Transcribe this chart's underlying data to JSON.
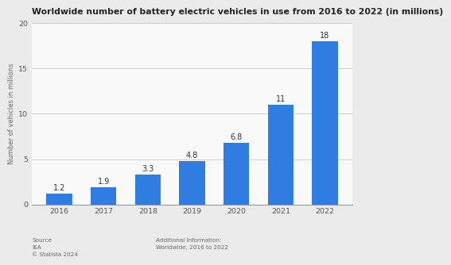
{
  "title": "Worldwide number of battery electric vehicles in use from 2016 to 2022 (in millions)",
  "years": [
    "2016",
    "2017",
    "2018",
    "2019",
    "2020",
    "2021",
    "2022"
  ],
  "values": [
    1.2,
    1.9,
    3.3,
    4.8,
    6.8,
    11,
    18
  ],
  "bar_color": "#2f7de1",
  "ylabel": "Number of vehicles in millions",
  "ylim": [
    0,
    20
  ],
  "yticks": [
    0,
    5,
    10,
    15,
    20
  ],
  "background_color": "#ebebeb",
  "plot_bg_color": "#f9f9f9",
  "title_fontsize": 7.8,
  "label_fontsize": 7.0,
  "tick_fontsize": 6.8,
  "ylabel_fontsize": 6.0,
  "bar_label_fontsize": 7.0,
  "source_text": "Source\nIEA\n© Statista 2024",
  "additional_text": "Additional Information:\nWorldwide, 2016 to 2022",
  "bar_width": 0.58
}
